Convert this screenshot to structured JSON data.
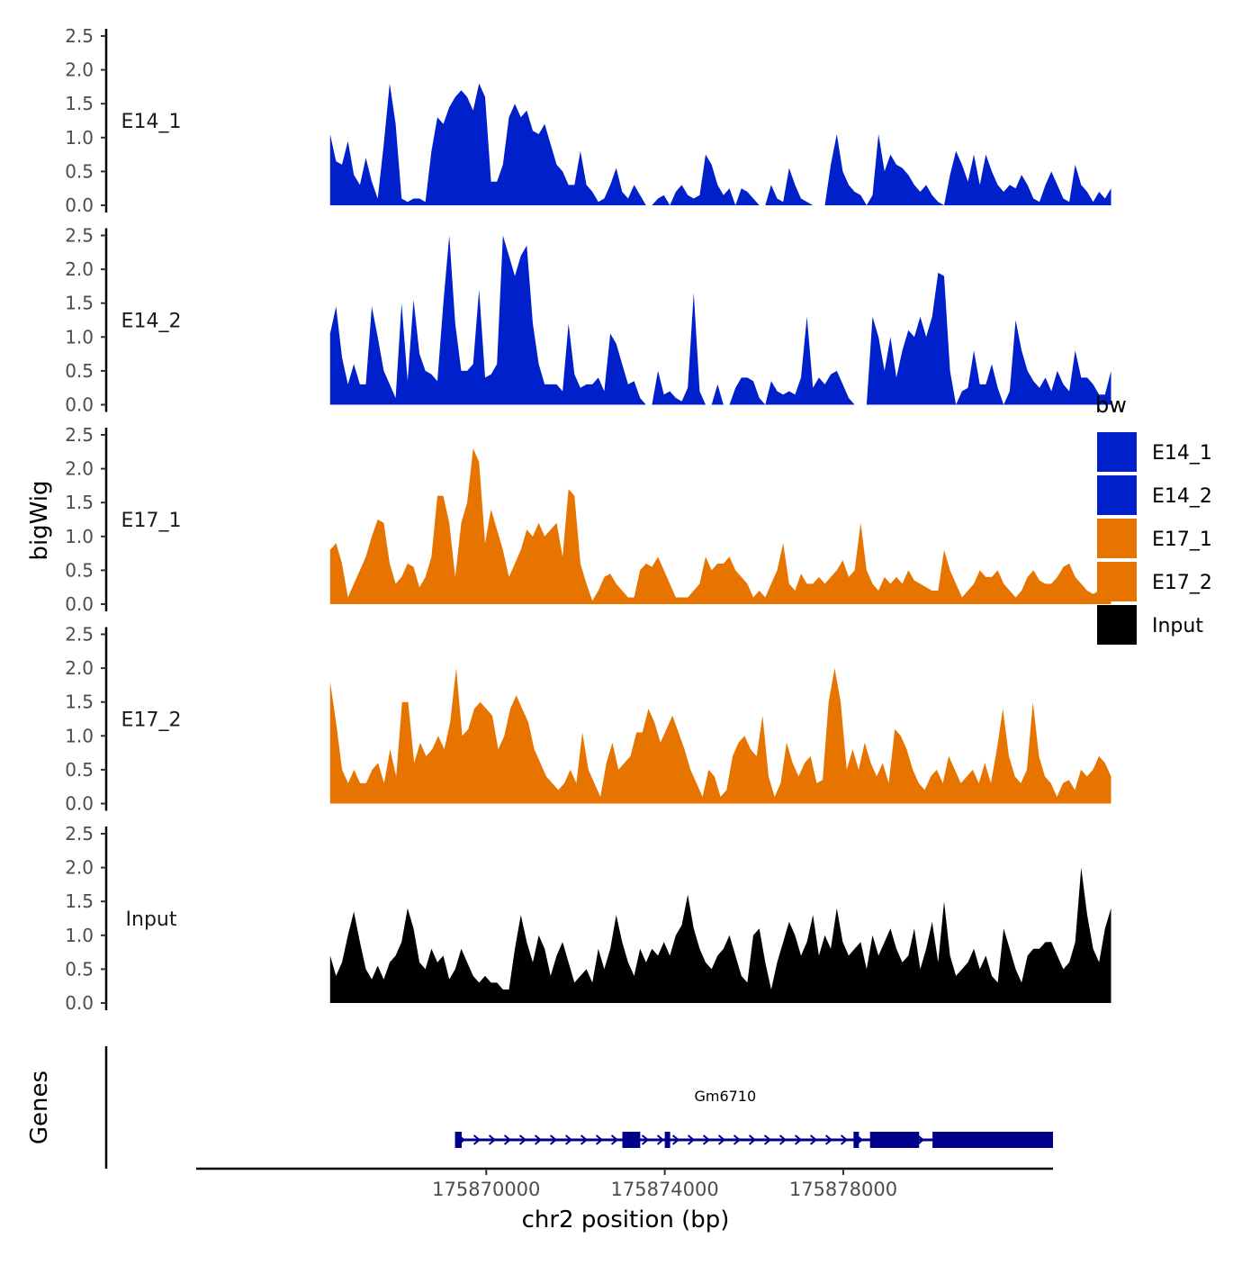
{
  "chart_data": {
    "type": "area",
    "title": "",
    "ylabel": "bigWig",
    "xlabel": "chr2 position (bp)",
    "x_range": [
      175866500,
      175884000
    ],
    "xlim": [
      175863500,
      175882700
    ],
    "ylim": [
      0,
      2.5
    ],
    "y_ticks": [
      "0.0",
      "0.5",
      "1.0",
      "1.5",
      "2.0",
      "2.5"
    ],
    "x_ticks": [
      {
        "value": 175870000,
        "label": "175870000"
      },
      {
        "value": 175874000,
        "label": "175874000"
      },
      {
        "value": 175878000,
        "label": "175878000"
      }
    ],
    "legend": {
      "title": "bw",
      "position": "right",
      "items": [
        {
          "label": "E14_1",
          "color": "#0020cc"
        },
        {
          "label": "E14_2",
          "color": "#0020cc"
        },
        {
          "label": "E17_1",
          "color": "#e87400"
        },
        {
          "label": "E17_2",
          "color": "#e87400"
        },
        {
          "label": "Input",
          "color": "#000000"
        }
      ]
    },
    "series": [
      {
        "name": "E14_1",
        "color": "#0020cc",
        "values": [
          1.05,
          0.65,
          0.6,
          0.95,
          0.45,
          0.3,
          0.7,
          0.35,
          0.1,
          0.9,
          1.8,
          1.2,
          0.1,
          0.05,
          0.1,
          0.1,
          0.05,
          0.8,
          1.3,
          1.2,
          1.45,
          1.6,
          1.7,
          1.6,
          1.4,
          1.8,
          1.6,
          0.35,
          0.35,
          0.6,
          1.3,
          1.5,
          1.3,
          1.4,
          1.1,
          1.05,
          1.2,
          0.9,
          0.6,
          0.5,
          0.3,
          0.3,
          0.8,
          0.3,
          0.2,
          0.05,
          0.1,
          0.3,
          0.55,
          0.2,
          0.1,
          0.3,
          0.15,
          0,
          0,
          0.1,
          0.15,
          0,
          0.2,
          0.3,
          0.15,
          0.1,
          0.15,
          0.75,
          0.6,
          0.3,
          0.15,
          0.25,
          0,
          0.25,
          0.2,
          0.1,
          0,
          0,
          0.3,
          0.1,
          0.05,
          0.55,
          0.3,
          0.1,
          0.05,
          0,
          0,
          0,
          0.6,
          1.05,
          0.5,
          0.3,
          0.2,
          0.15,
          0,
          0.15,
          1.05,
          0.5,
          0.75,
          0.6,
          0.55,
          0.45,
          0.3,
          0.2,
          0.3,
          0.15,
          0.05,
          0,
          0.45,
          0.8,
          0.6,
          0.35,
          0.75,
          0.3,
          0.75,
          0.5,
          0.3,
          0.2,
          0.3,
          0.25,
          0.45,
          0.3,
          0.1,
          0.05,
          0.3,
          0.5,
          0.3,
          0.1,
          0.05,
          0.6,
          0.3,
          0.2,
          0.05,
          0.2,
          0.1,
          0.25
        ]
      },
      {
        "name": "E14_2",
        "color": "#0020cc",
        "values": [
          1.05,
          1.45,
          0.7,
          0.3,
          0.6,
          0.3,
          0.3,
          1.45,
          1.0,
          0.5,
          0.3,
          0.1,
          1.5,
          0.35,
          1.55,
          0.75,
          0.5,
          0.45,
          0.35,
          1.5,
          2.5,
          1.2,
          0.5,
          0.5,
          0.6,
          1.7,
          0.4,
          0.45,
          0.6,
          2.5,
          2.2,
          1.9,
          2.2,
          2.35,
          1.2,
          0.6,
          0.3,
          0.3,
          0.3,
          0.2,
          1.2,
          0.45,
          0.25,
          0.3,
          0.3,
          0.4,
          0.2,
          1.05,
          0.9,
          0.6,
          0.3,
          0.35,
          0.1,
          0,
          0,
          0.5,
          0.15,
          0.2,
          0.1,
          0.05,
          0.25,
          1.65,
          0.2,
          0,
          0,
          0.3,
          0,
          0,
          0.25,
          0.4,
          0.4,
          0.35,
          0.1,
          0,
          0.35,
          0.2,
          0.15,
          0.2,
          0.15,
          0.4,
          1.3,
          0.25,
          0.4,
          0.3,
          0.45,
          0.5,
          0.3,
          0.1,
          0,
          0,
          0,
          1.3,
          1.0,
          0.5,
          1.0,
          0.4,
          0.8,
          1.1,
          1.0,
          1.3,
          1.0,
          1.3,
          1.95,
          1.9,
          0.5,
          0,
          0.2,
          0.25,
          0.8,
          0.3,
          0.3,
          0.6,
          0.25,
          0,
          0.2,
          1.25,
          0.8,
          0.5,
          0.35,
          0.25,
          0.4,
          0.2,
          0.5,
          0.3,
          0.2,
          0.8,
          0.4,
          0.4,
          0.3,
          0.15,
          0.15,
          0.5
        ]
      },
      {
        "name": "E17_1",
        "color": "#e87400",
        "values": [
          0.8,
          0.9,
          0.6,
          0.1,
          0.3,
          0.5,
          0.7,
          1.0,
          1.25,
          1.2,
          0.6,
          0.3,
          0.4,
          0.6,
          0.55,
          0.25,
          0.4,
          0.7,
          1.6,
          1.6,
          1.2,
          0.4,
          1.2,
          1.5,
          2.3,
          2.1,
          0.9,
          1.4,
          1.1,
          0.8,
          0.4,
          0.6,
          0.8,
          1.1,
          1.0,
          1.2,
          1.0,
          1.1,
          1.2,
          0.7,
          1.7,
          1.6,
          0.6,
          0.3,
          0.05,
          0.2,
          0.4,
          0.45,
          0.3,
          0.2,
          0.1,
          0.1,
          0.5,
          0.6,
          0.55,
          0.7,
          0.5,
          0.3,
          0.1,
          0.1,
          0.1,
          0.2,
          0.3,
          0.7,
          0.5,
          0.6,
          0.6,
          0.7,
          0.5,
          0.4,
          0.3,
          0.1,
          0.2,
          0.1,
          0.3,
          0.5,
          0.9,
          0.3,
          0.2,
          0.45,
          0.3,
          0.3,
          0.4,
          0.3,
          0.4,
          0.5,
          0.65,
          0.4,
          0.5,
          1.2,
          0.5,
          0.3,
          0.2,
          0.4,
          0.3,
          0.4,
          0.3,
          0.5,
          0.35,
          0.3,
          0.25,
          0.2,
          0.2,
          0.8,
          0.5,
          0.3,
          0.1,
          0.2,
          0.3,
          0.5,
          0.4,
          0.4,
          0.5,
          0.3,
          0.2,
          0.1,
          0.2,
          0.4,
          0.5,
          0.35,
          0.3,
          0.3,
          0.4,
          0.55,
          0.6,
          0.4,
          0.3,
          0.2,
          0.15,
          0.2,
          0.1,
          0.1
        ]
      },
      {
        "name": "E17_2",
        "color": "#e87400",
        "values": [
          1.8,
          1.2,
          0.5,
          0.3,
          0.5,
          0.3,
          0.3,
          0.5,
          0.6,
          0.3,
          0.8,
          0.4,
          1.5,
          1.5,
          0.6,
          0.9,
          0.7,
          0.8,
          1.0,
          0.8,
          1.2,
          2.0,
          1.0,
          1.1,
          1.4,
          1.5,
          1.4,
          1.3,
          0.8,
          1.0,
          1.4,
          1.6,
          1.4,
          1.2,
          0.8,
          0.6,
          0.4,
          0.3,
          0.2,
          0.3,
          0.5,
          0.3,
          1.05,
          0.5,
          0.3,
          0.1,
          0.6,
          0.9,
          0.5,
          0.6,
          0.7,
          1.05,
          1.05,
          1.4,
          1.2,
          0.9,
          1.1,
          1.3,
          1.05,
          0.8,
          0.5,
          0.3,
          0.1,
          0.5,
          0.4,
          0.1,
          0.2,
          0.7,
          0.9,
          1.0,
          0.8,
          0.7,
          1.3,
          0.4,
          0.1,
          0.3,
          0.9,
          0.6,
          0.4,
          0.6,
          0.7,
          0.3,
          0.35,
          1.5,
          2.0,
          1.5,
          0.5,
          0.8,
          0.5,
          0.9,
          0.6,
          0.4,
          0.6,
          0.3,
          1.1,
          1.0,
          0.8,
          0.5,
          0.3,
          0.2,
          0.4,
          0.5,
          0.3,
          0.7,
          0.5,
          0.3,
          0.4,
          0.5,
          0.3,
          0.6,
          0.3,
          0.8,
          1.4,
          0.7,
          0.4,
          0.3,
          0.5,
          1.5,
          0.7,
          0.4,
          0.3,
          0.1,
          0.3,
          0.35,
          0.2,
          0.5,
          0.4,
          0.5,
          0.7,
          0.6,
          0.4
        ]
      },
      {
        "name": "Input",
        "color": "#000000",
        "values": [
          0.7,
          0.4,
          0.6,
          1.0,
          1.35,
          0.9,
          0.5,
          0.35,
          0.55,
          0.35,
          0.6,
          0.7,
          0.9,
          1.4,
          1.1,
          0.6,
          0.5,
          0.8,
          0.6,
          0.7,
          0.35,
          0.5,
          0.8,
          0.6,
          0.4,
          0.3,
          0.4,
          0.3,
          0.3,
          0.2,
          0.2,
          0.8,
          1.3,
          0.9,
          0.6,
          1.0,
          0.8,
          0.4,
          0.7,
          0.9,
          0.6,
          0.3,
          0.4,
          0.5,
          0.3,
          0.8,
          0.5,
          0.8,
          1.3,
          0.9,
          0.6,
          0.4,
          0.8,
          0.6,
          0.8,
          0.7,
          0.9,
          0.7,
          1.0,
          1.15,
          1.6,
          1.1,
          0.8,
          0.6,
          0.5,
          0.7,
          0.8,
          1.0,
          0.7,
          0.4,
          0.3,
          1.0,
          1.1,
          0.6,
          0.2,
          0.6,
          0.9,
          1.2,
          1.0,
          0.7,
          0.9,
          1.3,
          0.7,
          1.0,
          0.8,
          1.4,
          0.9,
          0.7,
          0.8,
          0.9,
          0.5,
          1.0,
          0.7,
          0.9,
          1.1,
          0.8,
          0.6,
          0.7,
          1.1,
          0.5,
          0.8,
          1.2,
          0.6,
          1.5,
          0.7,
          0.4,
          0.5,
          0.6,
          0.8,
          0.5,
          0.7,
          0.4,
          0.3,
          1.1,
          0.8,
          0.5,
          0.3,
          0.7,
          0.8,
          0.8,
          0.9,
          0.9,
          0.7,
          0.5,
          0.6,
          0.9,
          2.0,
          1.3,
          0.8,
          0.6,
          1.1,
          1.4
        ]
      }
    ],
    "genes": {
      "label": "Genes",
      "gene": "Gm6710",
      "start": 175869300,
      "end": 175882700,
      "strand": "+",
      "exons": [
        {
          "start": 175869300,
          "end": 175869450
        },
        {
          "start": 175873050,
          "end": 175873450
        },
        {
          "start": 175874000,
          "end": 175874080
        },
        {
          "start": 175878230,
          "end": 175878330
        },
        {
          "start": 175878600,
          "end": 175879700
        },
        {
          "start": 175880000,
          "end": 175882700
        }
      ]
    }
  }
}
